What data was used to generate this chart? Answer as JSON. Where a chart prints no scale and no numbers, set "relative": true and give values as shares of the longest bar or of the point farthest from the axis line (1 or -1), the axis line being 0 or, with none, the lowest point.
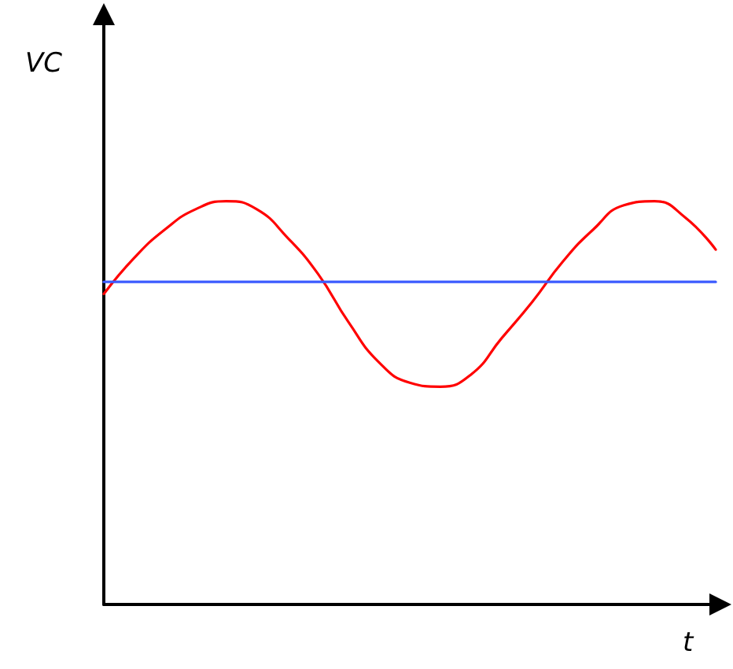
{
  "chart_data": {
    "type": "line",
    "xlabel": "t",
    "ylabel": "VC",
    "relative": true,
    "grid": false,
    "marker": "none",
    "line_style": "solid",
    "categories": [
      null,
      null,
      null,
      null,
      null,
      null,
      null,
      null,
      null,
      null,
      null,
      null,
      null,
      null,
      null,
      null,
      null,
      null,
      null,
      null,
      null
    ],
    "series": [
      {
        "color": "#ff0000",
        "values": [
          0.77,
          0.86,
          0.93,
          0.98,
          1.0,
          0.98,
          0.91,
          0.82,
          0.7,
          0.6,
          0.55,
          0.54,
          0.57,
          0.66,
          0.75,
          0.85,
          0.93,
          0.99,
          1.0,
          0.96,
          0.88
        ]
      },
      {
        "color": "#3b5bff",
        "values": [
          0.8,
          0.8,
          0.8,
          0.8,
          0.8,
          0.8,
          0.8,
          0.8,
          0.8,
          0.8,
          0.8,
          0.8,
          0.8,
          0.8,
          0.8,
          0.8,
          0.8,
          0.8,
          0.8,
          0.8,
          0.8
        ]
      }
    ]
  }
}
